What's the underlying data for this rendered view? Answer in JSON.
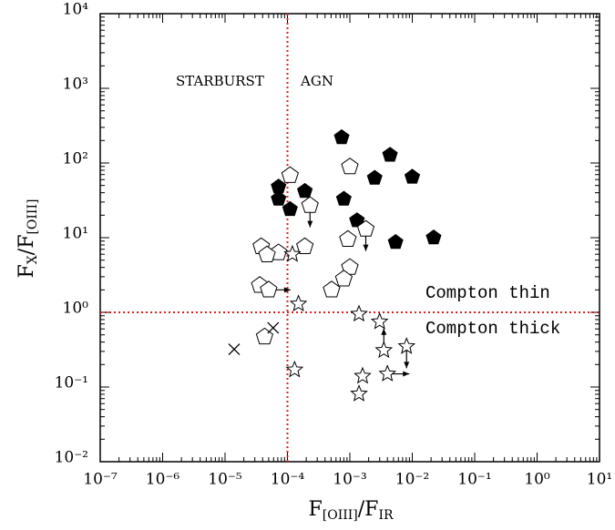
{
  "chart_data": {
    "type": "scatter",
    "xlabel": [
      "F",
      "[OIII]",
      "/F",
      "IR"
    ],
    "ylabel": [
      "F",
      "X",
      "/F",
      "[OIII]"
    ],
    "xscale": "log",
    "yscale": "log",
    "xlim": [
      1e-07,
      10
    ],
    "ylim": [
      0.01,
      10000
    ],
    "xticks": [
      {
        "value": 1e-07,
        "label": "10⁻⁷"
      },
      {
        "value": 1e-06,
        "label": "10⁻⁶"
      },
      {
        "value": 1e-05,
        "label": "10⁻⁵"
      },
      {
        "value": 0.0001,
        "label": "10⁻⁴"
      },
      {
        "value": 0.001,
        "label": "10⁻³"
      },
      {
        "value": 0.01,
        "label": "10⁻²"
      },
      {
        "value": 0.1,
        "label": "10⁻¹"
      },
      {
        "value": 1,
        "label": "10⁰"
      },
      {
        "value": 10,
        "label": "10¹"
      }
    ],
    "yticks": [
      {
        "value": 0.01,
        "label": "10⁻²"
      },
      {
        "value": 0.1,
        "label": "10⁻¹"
      },
      {
        "value": 1,
        "label": "10⁰"
      },
      {
        "value": 10,
        "label": "10¹"
      },
      {
        "value": 100,
        "label": "10²"
      },
      {
        "value": 1000,
        "label": "10³"
      },
      {
        "value": 10000,
        "label": "10⁴"
      }
    ],
    "reference_lines": {
      "x": [
        0.0001
      ],
      "y": [
        1
      ],
      "color": "#e02020"
    },
    "annotations": [
      "STARBURST",
      "AGN",
      "Compton thin",
      "Compton thick"
    ],
    "series": [
      {
        "marker": "filled-pentagon",
        "color": "#000000",
        "x": [
          0.00074,
          0.0044,
          0.0025,
          0.01,
          0.00019,
          7.2e-05,
          7.2e-05,
          0.00011,
          0.0008,
          0.0013,
          0.0054,
          0.022
        ],
        "values": [
          220,
          128,
          63,
          65,
          42,
          48,
          33,
          24,
          33,
          17,
          8.7,
          10
        ]
      },
      {
        "marker": "open-pentagon",
        "color": "#000000",
        "x": [
          0.00011,
          0.001,
          0.00023,
          0.00093,
          0.0018,
          7.2e-05,
          3.8e-05,
          4.7e-05,
          0.00019,
          3.6e-05,
          5e-05,
          0.001,
          0.0008,
          0.00051,
          4.3e-05
        ],
        "values": [
          68,
          89,
          27,
          9.5,
          13,
          6.3,
          7.6,
          5.9,
          7.6,
          2.3,
          2.0,
          4.0,
          2.8,
          2.0,
          0.47
        ],
        "limits": [
          null,
          null,
          "down",
          null,
          "down",
          null,
          null,
          null,
          null,
          null,
          "right",
          null,
          null,
          null,
          null
        ]
      },
      {
        "marker": "star",
        "color": "#000000",
        "x": [
          0.00012,
          0.00015,
          0.0014,
          0.003,
          0.0035,
          0.0081,
          0.004,
          0.00013,
          0.0016,
          0.0014
        ],
        "values": [
          6.0,
          1.3,
          0.95,
          0.75,
          0.31,
          0.35,
          0.15,
          0.17,
          0.14,
          0.081
        ],
        "limits": [
          null,
          null,
          null,
          null,
          "up",
          "down",
          "right",
          null,
          null,
          null
        ]
      },
      {
        "marker": "cross",
        "color": "#000000",
        "x": [
          1.4e-05,
          5.9e-05
        ],
        "values": [
          0.32,
          0.62
        ]
      }
    ]
  }
}
